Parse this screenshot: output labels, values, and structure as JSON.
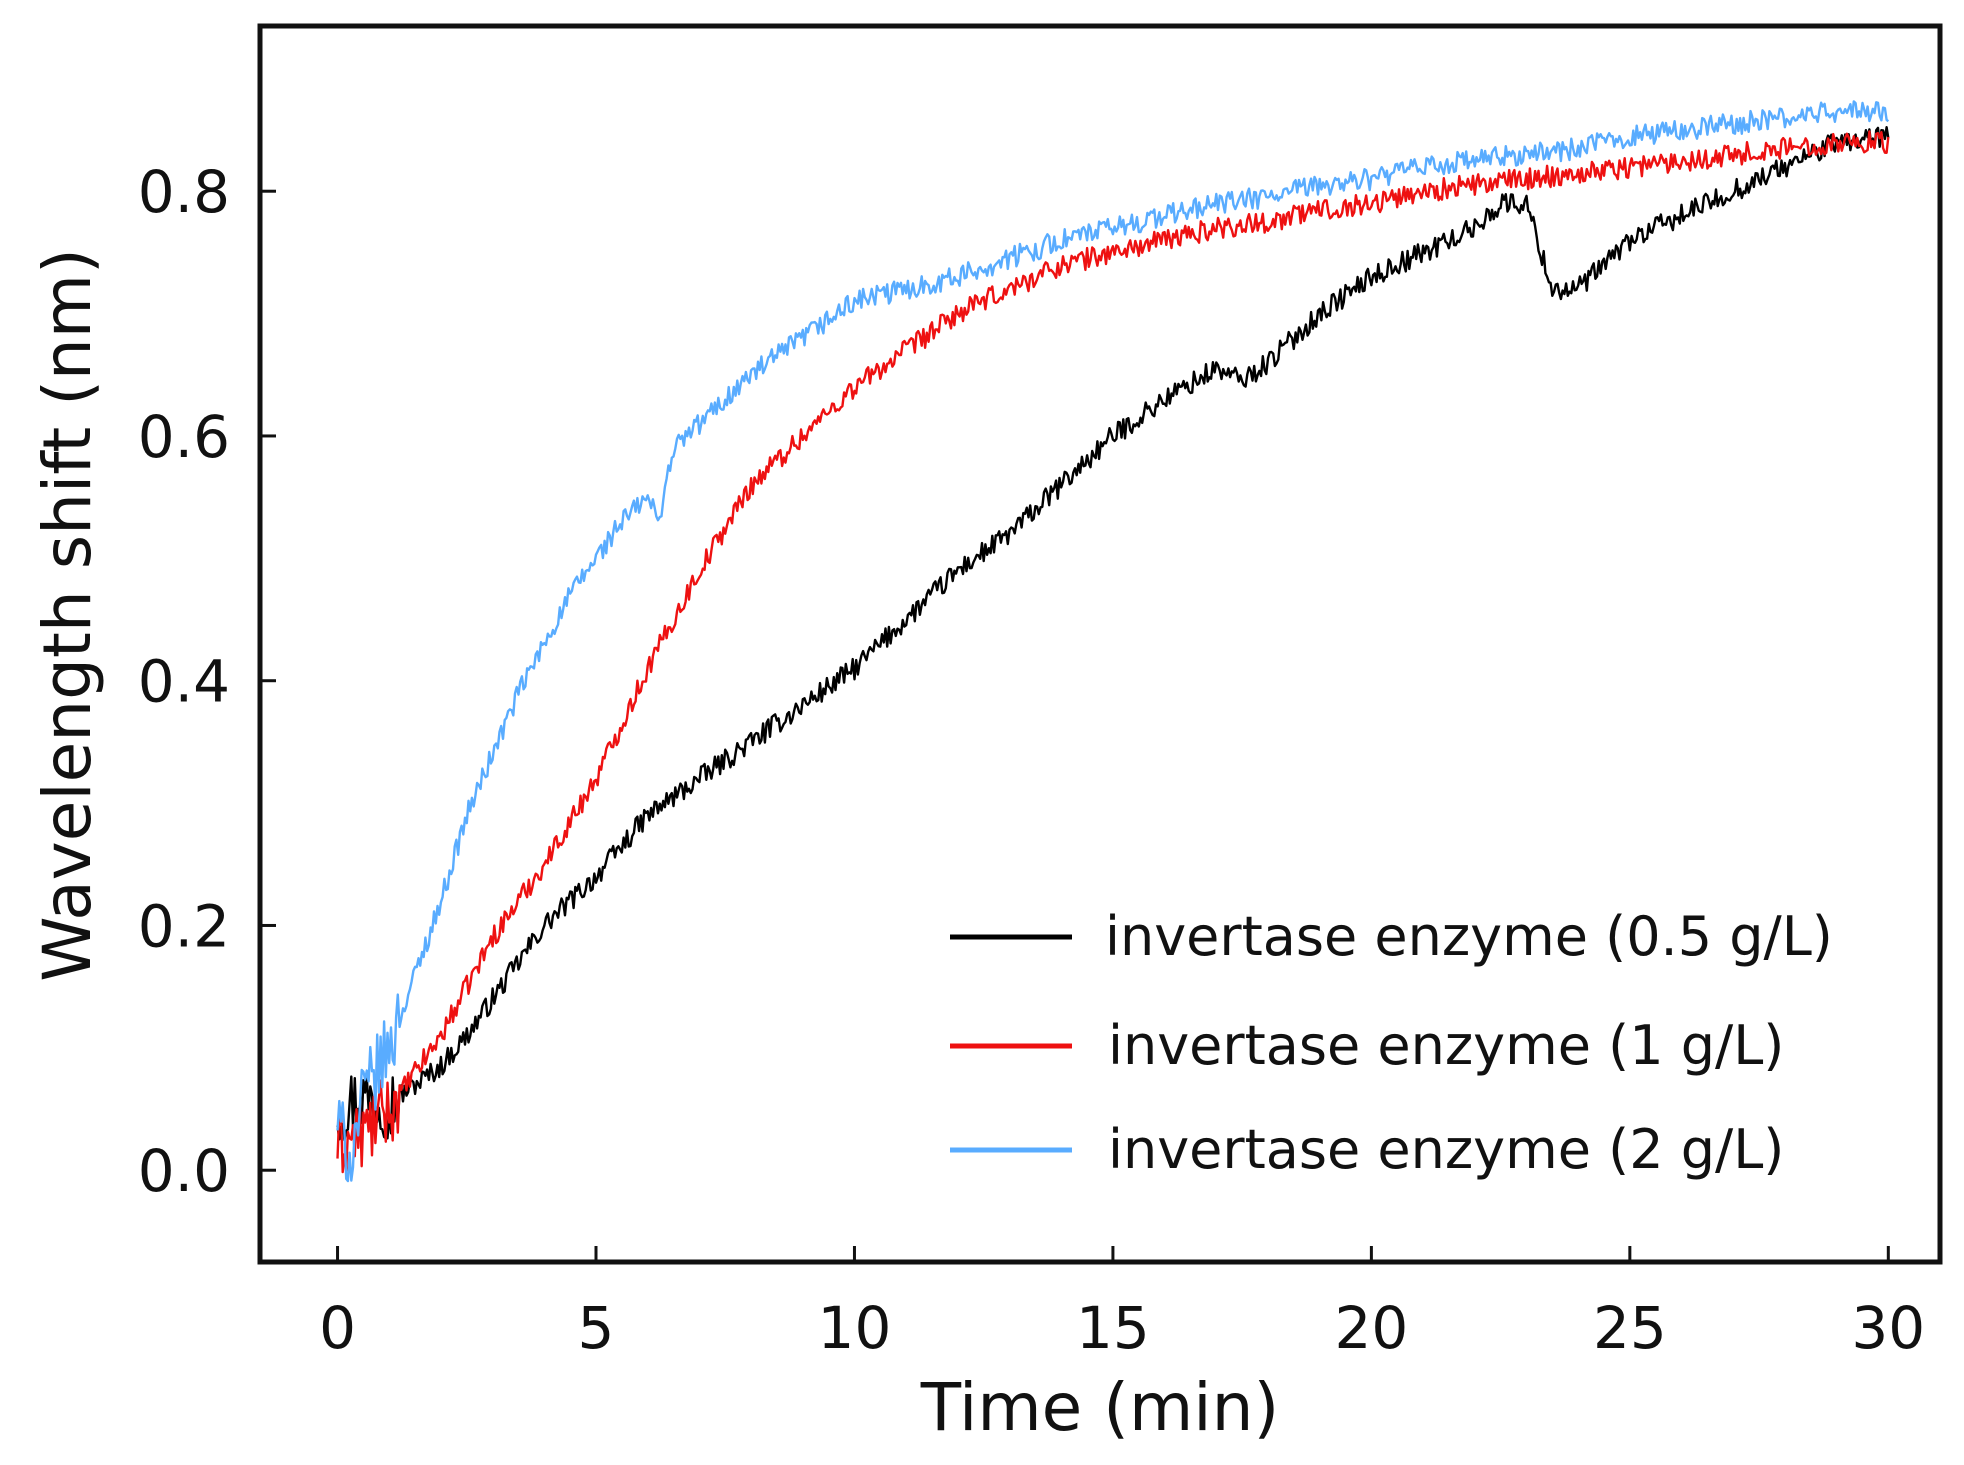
{
  "chart_data": {
    "type": "line",
    "title": "",
    "xlabel": "Time (min)",
    "ylabel": "Wavelength shift (nm)",
    "xlim": [
      -1.5,
      31
    ],
    "ylim": [
      -0.075,
      0.935
    ],
    "xticks": [
      0,
      5,
      10,
      15,
      20,
      25,
      30
    ],
    "xtick_labels": [
      "0",
      "5",
      "10",
      "15",
      "20",
      "25",
      "30"
    ],
    "yticks": [
      0.0,
      0.2,
      0.4,
      0.6,
      0.8
    ],
    "ytick_labels": [
      "0.0",
      "0.2",
      "0.4",
      "0.6",
      "0.8"
    ],
    "grid": false,
    "legend_position": "lower-right",
    "series": [
      {
        "name": "invertase enzyme (0.5 g/L)",
        "color": "#000000",
        "x": [
          0,
          0.5,
          1,
          1.5,
          2,
          2.5,
          3,
          3.5,
          4,
          5,
          6,
          7,
          8,
          9,
          10,
          11,
          12,
          13,
          14,
          15,
          16,
          17,
          17.5,
          18,
          19,
          20,
          21,
          22,
          22.5,
          23,
          23.5,
          24,
          25,
          26,
          27,
          28,
          29,
          30
        ],
        "values": [
          0.05,
          0.06,
          0.055,
          0.07,
          0.085,
          0.11,
          0.14,
          0.17,
          0.2,
          0.24,
          0.29,
          0.32,
          0.35,
          0.38,
          0.41,
          0.45,
          0.49,
          0.52,
          0.56,
          0.6,
          0.63,
          0.655,
          0.645,
          0.66,
          0.7,
          0.73,
          0.75,
          0.77,
          0.79,
          0.79,
          0.72,
          0.72,
          0.76,
          0.78,
          0.8,
          0.82,
          0.84,
          0.845
        ]
      },
      {
        "name": "invertase enzyme (1 g/L)",
        "color": "#ee1111",
        "x": [
          0,
          0.5,
          1,
          1.5,
          2,
          2.5,
          3,
          4,
          5,
          6,
          7,
          8,
          9,
          10,
          11,
          12,
          13,
          14,
          15,
          16,
          17,
          18,
          19,
          20,
          21,
          22,
          23,
          24,
          25,
          26,
          27,
          28,
          29,
          30
        ],
        "values": [
          0.02,
          0.03,
          0.05,
          0.08,
          0.11,
          0.15,
          0.19,
          0.25,
          0.32,
          0.41,
          0.49,
          0.56,
          0.6,
          0.64,
          0.67,
          0.7,
          0.72,
          0.74,
          0.75,
          0.76,
          0.77,
          0.775,
          0.785,
          0.79,
          0.8,
          0.805,
          0.81,
          0.815,
          0.82,
          0.825,
          0.83,
          0.835,
          0.84,
          0.84
        ]
      },
      {
        "name": "invertase enzyme (2 g/L)",
        "color": "#59acff",
        "x": [
          0,
          0.25,
          0.5,
          1,
          1.5,
          2,
          2.5,
          3,
          3.5,
          4,
          4.5,
          5,
          5.5,
          6,
          6.2,
          6.5,
          7,
          8,
          9,
          10,
          11,
          12,
          13,
          14,
          15,
          16,
          17,
          18,
          19,
          20,
          21,
          22,
          23,
          24,
          25,
          26,
          27,
          28,
          29,
          30
        ],
        "values": [
          0.04,
          0.01,
          0.06,
          0.1,
          0.16,
          0.22,
          0.29,
          0.34,
          0.39,
          0.43,
          0.47,
          0.5,
          0.53,
          0.55,
          0.53,
          0.59,
          0.61,
          0.65,
          0.68,
          0.71,
          0.72,
          0.73,
          0.745,
          0.76,
          0.77,
          0.78,
          0.79,
          0.795,
          0.805,
          0.81,
          0.82,
          0.825,
          0.83,
          0.835,
          0.845,
          0.85,
          0.855,
          0.86,
          0.865,
          0.865
        ]
      }
    ]
  }
}
